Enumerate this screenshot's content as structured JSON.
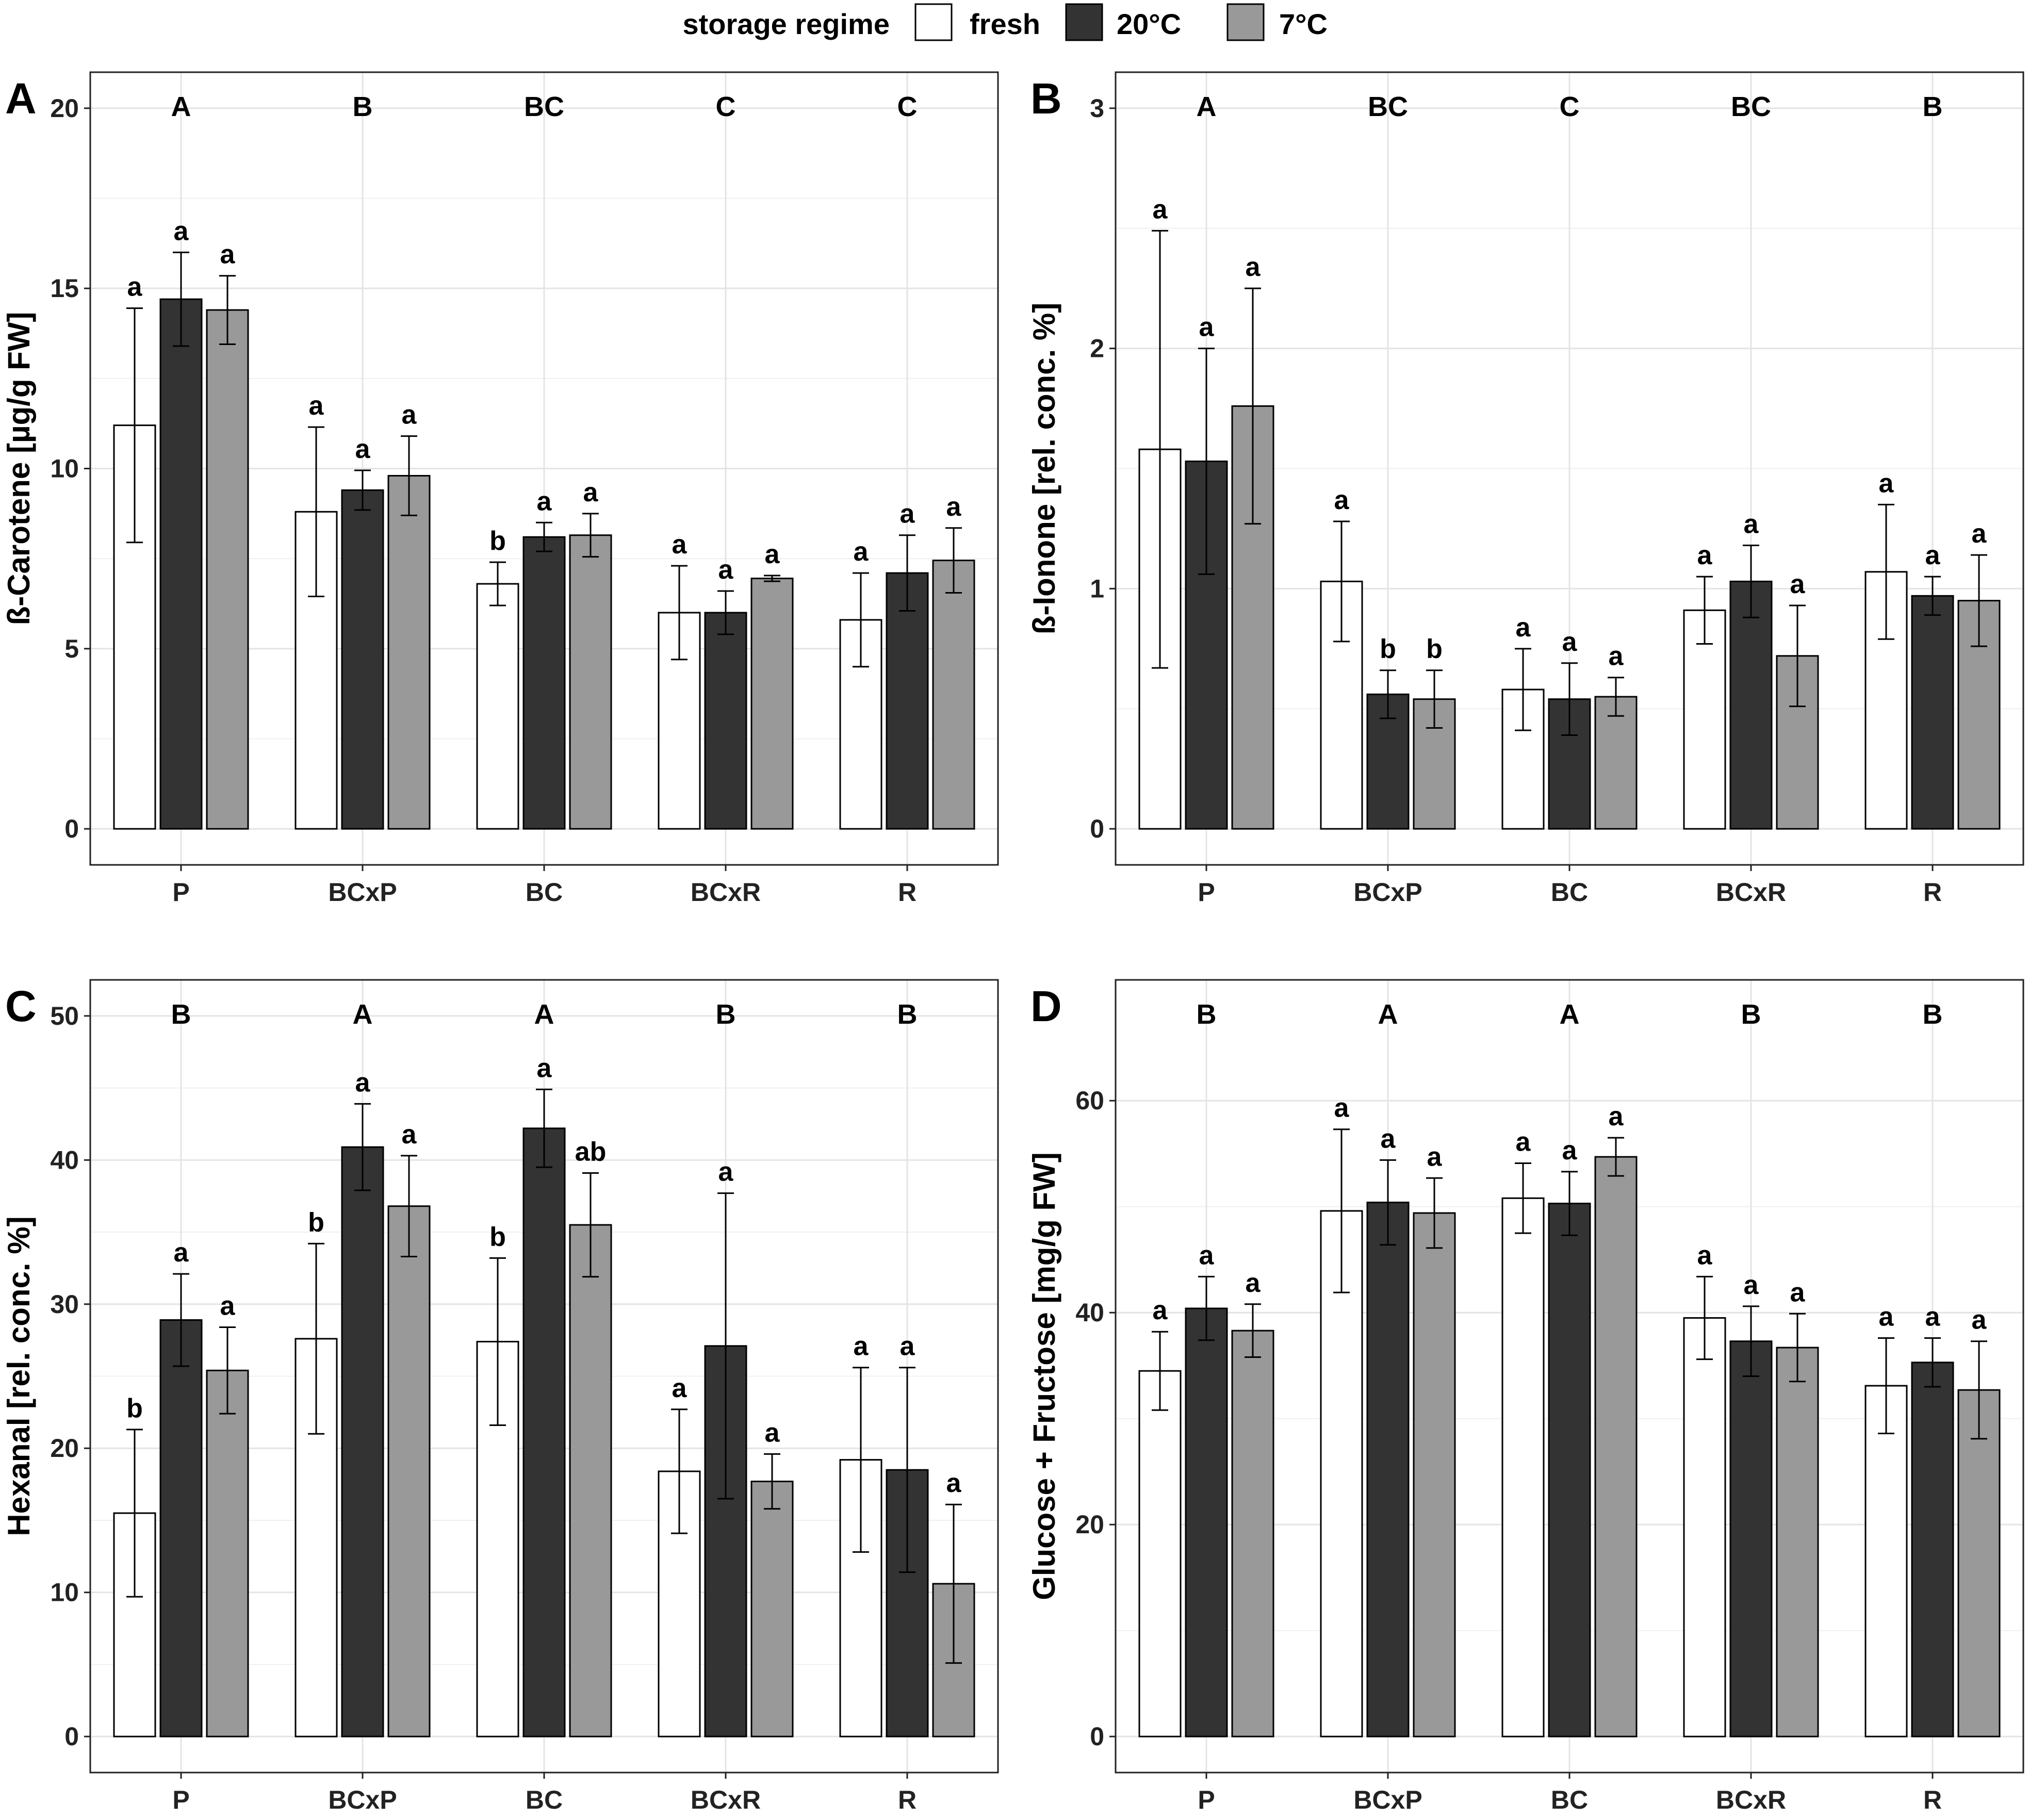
{
  "legend": {
    "title": "storage regime",
    "items": [
      {
        "label": "fresh",
        "color": "#ffffff"
      },
      {
        "label": "20°C",
        "color": "#333333"
      },
      {
        "label": "7°C",
        "color": "#999999"
      }
    ]
  },
  "chart_data": [
    {
      "panel": "A",
      "type": "bar",
      "ylabel": "ß-Carotene [µg/g FW]",
      "ylim": [
        -1,
        21
      ],
      "yticks": [
        0,
        5,
        10,
        15,
        20
      ],
      "categories": [
        "P",
        "BCxP",
        "BC",
        "BCxR",
        "R"
      ],
      "group_letters": [
        "A",
        "B",
        "BC",
        "C",
        "C"
      ],
      "series": [
        {
          "name": "fresh",
          "values": [
            11.2,
            8.8,
            6.8,
            6.0,
            5.8
          ],
          "err": [
            3.25,
            2.35,
            0.6,
            1.3,
            1.3
          ],
          "letters": [
            "a",
            "a",
            "b",
            "a",
            "a"
          ]
        },
        {
          "name": "20°C",
          "values": [
            14.7,
            9.4,
            8.1,
            6.0,
            7.1
          ],
          "err": [
            1.3,
            0.55,
            0.4,
            0.6,
            1.05
          ],
          "letters": [
            "a",
            "a",
            "a",
            "a",
            "a"
          ]
        },
        {
          "name": "7°C",
          "values": [
            14.4,
            9.8,
            8.15,
            6.95,
            7.45
          ],
          "err": [
            0.95,
            1.1,
            0.6,
            0.08,
            0.9
          ],
          "letters": [
            "a",
            "a",
            "a",
            "a",
            "a"
          ]
        }
      ]
    },
    {
      "panel": "B",
      "type": "bar",
      "ylabel": "ß-Ionone [rel. conc. %]",
      "ylim": [
        -0.15,
        3.15
      ],
      "yticks": [
        0,
        1,
        2,
        3
      ],
      "categories": [
        "P",
        "BCxP",
        "BC",
        "BCxR",
        "R"
      ],
      "group_letters": [
        "A",
        "BC",
        "C",
        "BC",
        "B"
      ],
      "series": [
        {
          "name": "fresh",
          "values": [
            1.58,
            1.03,
            0.58,
            0.91,
            1.07
          ],
          "err": [
            0.91,
            0.25,
            0.17,
            0.14,
            0.28
          ],
          "letters": [
            "a",
            "a",
            "a",
            "a",
            "a"
          ]
        },
        {
          "name": "20°C",
          "values": [
            1.53,
            0.56,
            0.54,
            1.03,
            0.97
          ],
          "err": [
            0.47,
            0.1,
            0.15,
            0.15,
            0.08
          ],
          "letters": [
            "a",
            "b",
            "a",
            "a",
            "a"
          ]
        },
        {
          "name": "7°C",
          "values": [
            1.76,
            0.54,
            0.55,
            0.72,
            0.95
          ],
          "err": [
            0.49,
            0.12,
            0.08,
            0.21,
            0.19
          ],
          "letters": [
            "a",
            "b",
            "a",
            "a",
            "a"
          ]
        }
      ]
    },
    {
      "panel": "C",
      "type": "bar",
      "ylabel": "Hexanal [rel. conc. %]",
      "ylim": [
        -2.5,
        52.5
      ],
      "yticks": [
        0,
        10,
        20,
        30,
        40,
        50
      ],
      "categories": [
        "P",
        "BCxP",
        "BC",
        "BCxR",
        "R"
      ],
      "group_letters": [
        "B",
        "A",
        "A",
        "B",
        "B"
      ],
      "series": [
        {
          "name": "fresh",
          "values": [
            15.5,
            27.6,
            27.4,
            18.4,
            19.2
          ],
          "err": [
            5.8,
            6.6,
            5.8,
            4.3,
            6.4
          ],
          "letters": [
            "b",
            "b",
            "b",
            "a",
            "a"
          ]
        },
        {
          "name": "20°C",
          "values": [
            28.9,
            40.9,
            42.2,
            27.1,
            18.5
          ],
          "err": [
            3.2,
            3.0,
            2.7,
            10.6,
            7.1
          ],
          "letters": [
            "a",
            "a",
            "a",
            "a",
            "a"
          ]
        },
        {
          "name": "7°C",
          "values": [
            25.4,
            36.8,
            35.5,
            17.7,
            10.6
          ],
          "err": [
            3.0,
            3.5,
            3.6,
            1.9,
            5.5
          ],
          "letters": [
            "a",
            "a",
            "ab",
            "a",
            "a"
          ]
        }
      ]
    },
    {
      "panel": "D",
      "type": "bar",
      "ylabel": "Glucose + Fructose [mg/g FW]",
      "ylim": [
        -3.4,
        71.4
      ],
      "yticks": [
        0,
        20,
        40,
        60
      ],
      "categories": [
        "P",
        "BCxP",
        "BC",
        "BCxR",
        "R"
      ],
      "group_letters": [
        "B",
        "A",
        "A",
        "B",
        "B"
      ],
      "series": [
        {
          "name": "fresh",
          "values": [
            34.5,
            49.6,
            50.8,
            39.5,
            33.1
          ],
          "err": [
            3.7,
            7.7,
            3.3,
            3.9,
            4.5
          ],
          "letters": [
            "a",
            "a",
            "a",
            "a",
            "a"
          ]
        },
        {
          "name": "20°C",
          "values": [
            40.4,
            50.4,
            50.3,
            37.3,
            35.3
          ],
          "err": [
            3.0,
            4.0,
            3.0,
            3.3,
            2.3
          ],
          "letters": [
            "a",
            "a",
            "a",
            "a",
            "a"
          ]
        },
        {
          "name": "7°C",
          "values": [
            38.3,
            49.4,
            54.7,
            36.7,
            32.7
          ],
          "err": [
            2.5,
            3.3,
            1.8,
            3.2,
            4.6
          ],
          "letters": [
            "a",
            "a",
            "a",
            "a",
            "a"
          ]
        }
      ]
    }
  ]
}
